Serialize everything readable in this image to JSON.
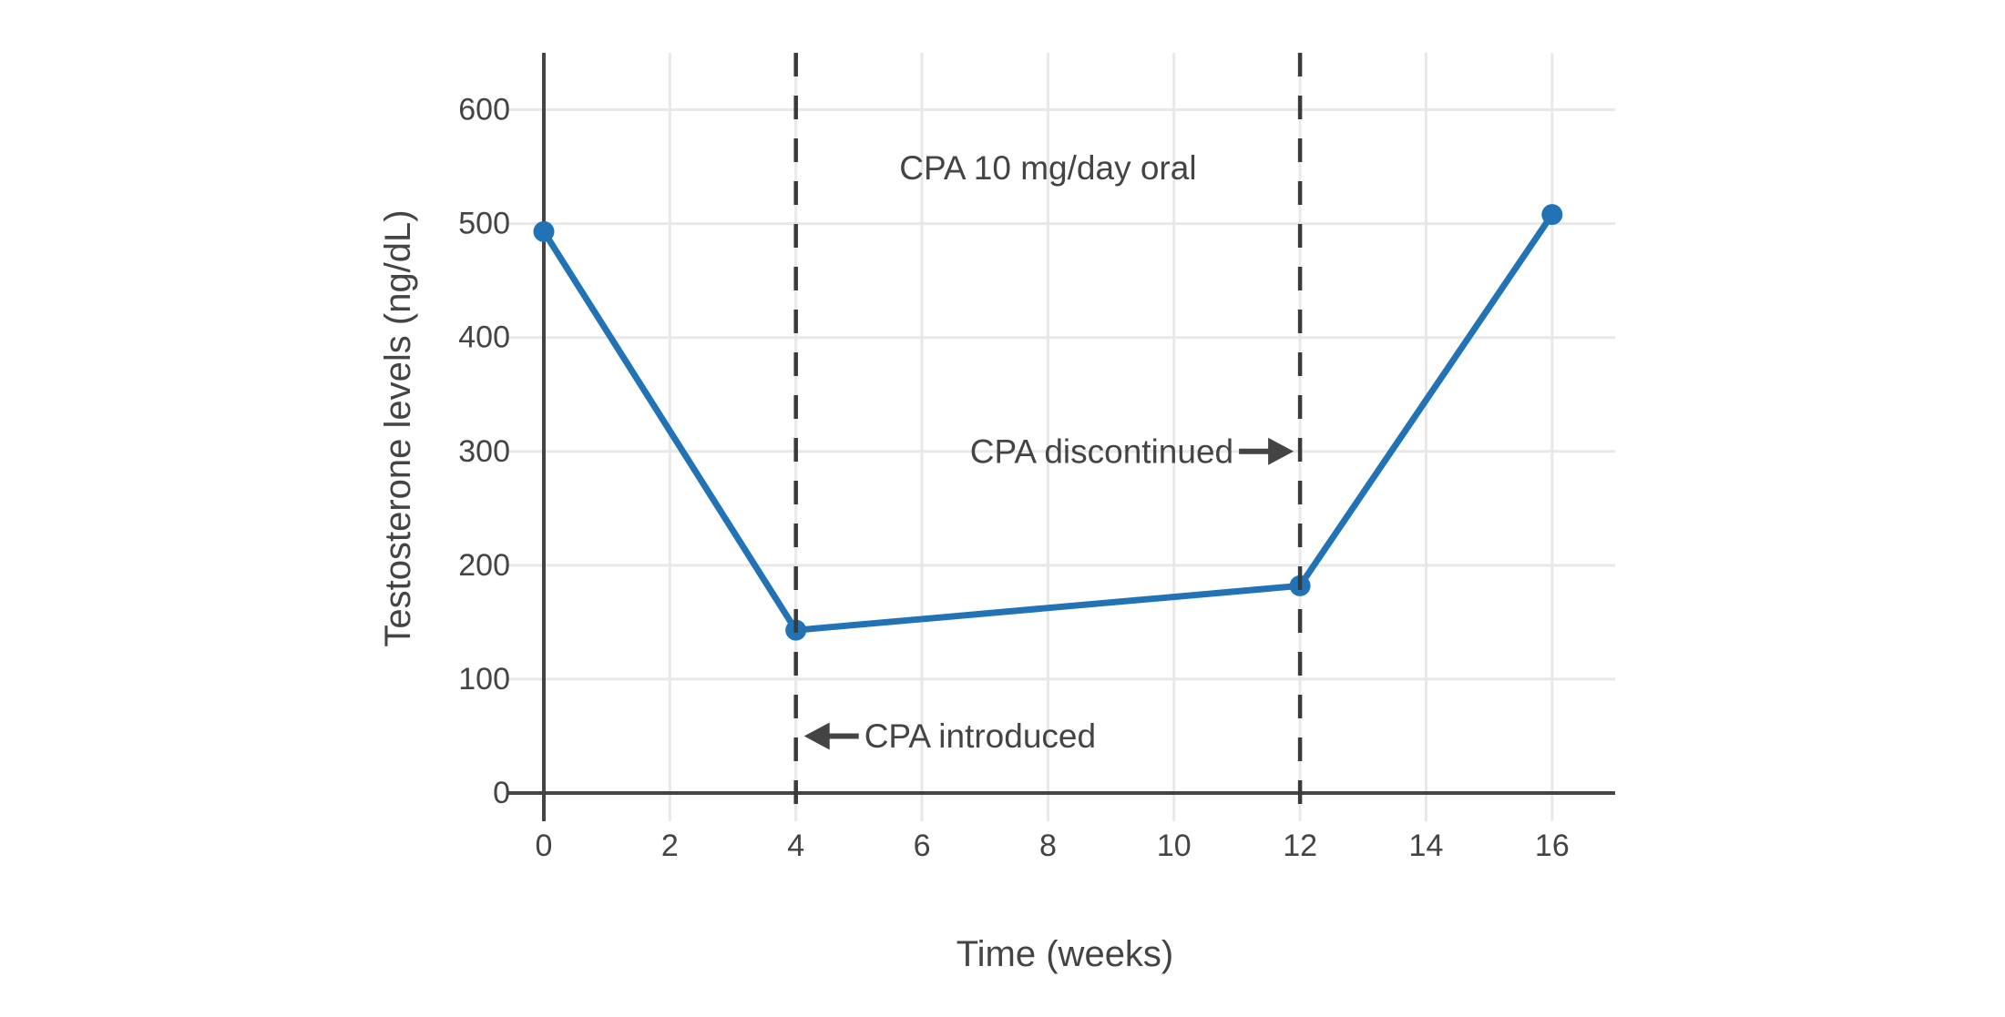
{
  "chart_data": {
    "type": "line",
    "title": "",
    "xlabel": "Time (weeks)",
    "ylabel": "Testosterone levels (ng/dL)",
    "series": [
      {
        "name": "Testosterone",
        "x": [
          0,
          4,
          12,
          16
        ],
        "y": [
          493,
          143,
          182,
          508
        ]
      }
    ],
    "xlim": [
      0,
      17
    ],
    "ylim": [
      0,
      650
    ],
    "xticks": [
      0,
      2,
      4,
      6,
      8,
      10,
      12,
      14,
      16
    ],
    "yticks": [
      0,
      100,
      200,
      300,
      400,
      500,
      600
    ],
    "grid": true,
    "legend": "none",
    "vlines": [
      {
        "x": 4,
        "style": "dashed"
      },
      {
        "x": 12,
        "style": "dashed"
      }
    ],
    "annotations": [
      {
        "id": "cpa-dose-label",
        "text": "CPA 10 mg/day oral",
        "x": 8,
        "y": 549,
        "arrow": "none"
      },
      {
        "id": "cpa-discontinued-label",
        "text": "CPA discontinued",
        "x": 12,
        "y": 300,
        "arrow": "right"
      },
      {
        "id": "cpa-introduced-label",
        "text": "CPA introduced",
        "x": 4,
        "y": 50,
        "arrow": "left"
      }
    ],
    "colors": {
      "line": "#2273b6",
      "marker": "#2273b6",
      "grid": "#e8e8e8",
      "axis": "#444444",
      "text": "#444444",
      "dashed_line": "#3a3a3a",
      "background": "#ffffff"
    }
  }
}
